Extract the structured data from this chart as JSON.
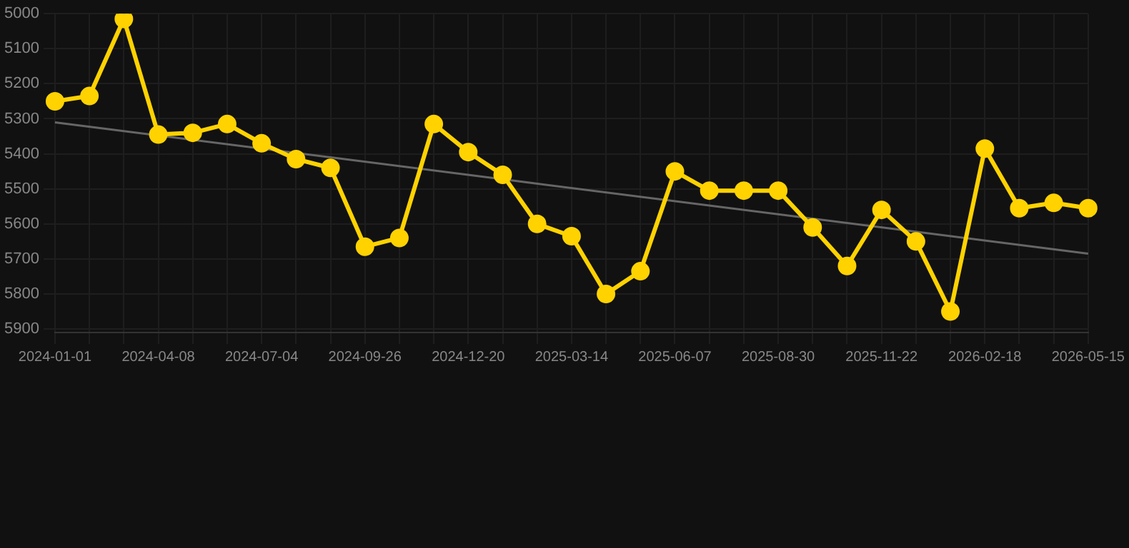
{
  "chart_data": {
    "type": "line",
    "categories": [
      "2024-01-01",
      null,
      null,
      "2024-04-08",
      null,
      null,
      "2024-07-04",
      null,
      null,
      "2024-09-26",
      null,
      null,
      "2024-12-20",
      null,
      null,
      "2025-03-14",
      null,
      null,
      "2025-06-07",
      null,
      null,
      "2025-08-30",
      null,
      null,
      "2025-11-22",
      null,
      null,
      "2026-02-18",
      null,
      null,
      "2026-05-15"
    ],
    "series": [
      {
        "color": "#ffd200",
        "marker": "circle",
        "values": [
          5250,
          5235,
          5015,
          5345,
          5340,
          5315,
          5370,
          5415,
          5440,
          5665,
          5640,
          5315,
          5395,
          5460,
          5600,
          5635,
          5800,
          5735,
          5450,
          5505,
          5505,
          5505,
          5610,
          5720,
          5560,
          5650,
          5850,
          5385,
          5555,
          5540,
          5555
        ]
      },
      {
        "type": "line",
        "color": "#666666",
        "marker": "none",
        "values": [
          5310,
          null,
          null,
          null,
          null,
          null,
          null,
          null,
          null,
          null,
          null,
          null,
          null,
          null,
          null,
          null,
          null,
          null,
          null,
          null,
          null,
          null,
          null,
          null,
          null,
          null,
          null,
          null,
          null,
          null,
          5685
        ]
      }
    ],
    "ylim": [
      5910,
      5000
    ],
    "yticks": [
      5000,
      5100,
      5200,
      5300,
      5400,
      5500,
      5600,
      5700,
      5800,
      5900
    ],
    "grid": true,
    "legend": false
  }
}
